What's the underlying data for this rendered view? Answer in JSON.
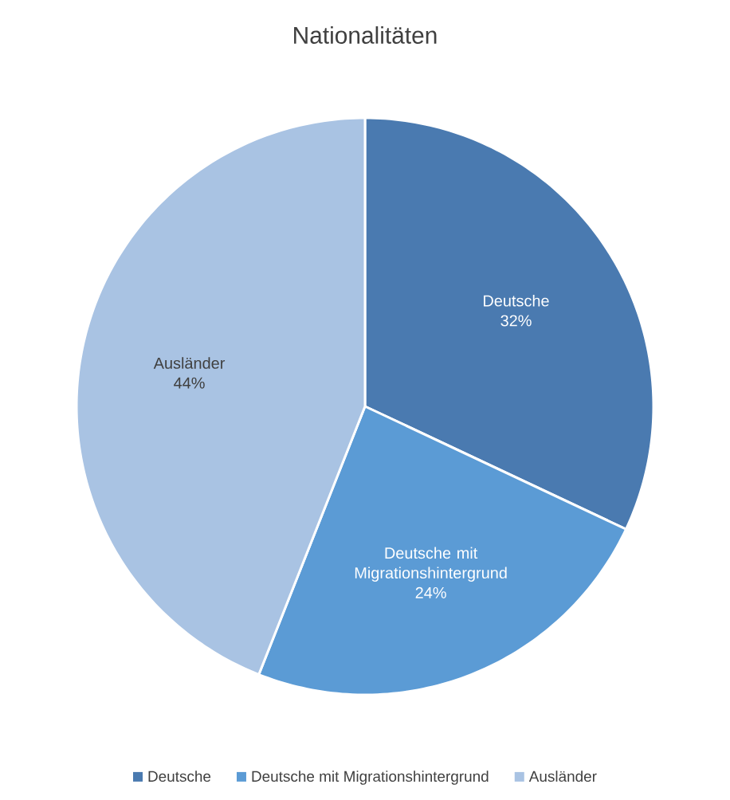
{
  "chart_data": {
    "type": "pie",
    "title": "Nationalitäten",
    "categories": [
      "Deutsche",
      "Deutsche mit Migrationshintergrund",
      "Ausländer"
    ],
    "values": [
      32,
      24,
      44
    ],
    "value_labels": [
      "32%",
      "24%",
      "44%"
    ],
    "colors": [
      "#4a7ab0",
      "#5b9bd5",
      "#a9c3e3"
    ],
    "legend": "bottom"
  }
}
